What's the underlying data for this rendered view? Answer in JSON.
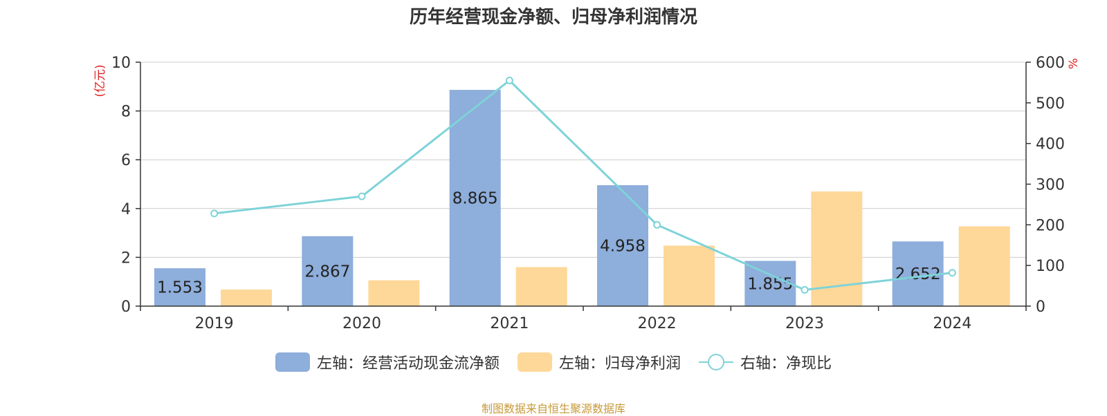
{
  "chart_data": {
    "type": "bar",
    "title": "历年经营现金净额、归母净利润情况",
    "categories": [
      "2019",
      "2020",
      "2021",
      "2022",
      "2023",
      "2024"
    ],
    "ylabel_left": "亿元",
    "ylabel_right": "%",
    "ylim_left": [
      0,
      10
    ],
    "ylim_right": [
      0,
      600
    ],
    "yticks_left": [
      "0",
      "2",
      "4",
      "6",
      "8",
      "10"
    ],
    "yticks_right": [
      "0",
      "100",
      "200",
      "300",
      "400",
      "500",
      "600"
    ],
    "grid": true,
    "legend_position": "bottom",
    "series": [
      {
        "name": "左轴：经营活动现金流净额",
        "type": "bar",
        "axis": "left",
        "color": "#8eaedb",
        "values": [
          1.553,
          2.867,
          8.865,
          4.958,
          1.855,
          2.652
        ],
        "labels": [
          "1.553",
          "2.867",
          "8.865",
          "4.958",
          "1.855",
          "2.652"
        ]
      },
      {
        "name": "左轴：归母净利润",
        "type": "bar",
        "axis": "left",
        "color": "#fed899",
        "values": [
          0.68,
          1.06,
          1.6,
          2.48,
          4.7,
          3.27
        ]
      },
      {
        "name": "右轴：净现比",
        "type": "line",
        "axis": "right",
        "color": "#7ed3d8",
        "values": [
          228,
          270,
          555,
          200,
          40,
          82
        ]
      }
    ],
    "source": "制图数据来自恒生聚源数据库"
  }
}
